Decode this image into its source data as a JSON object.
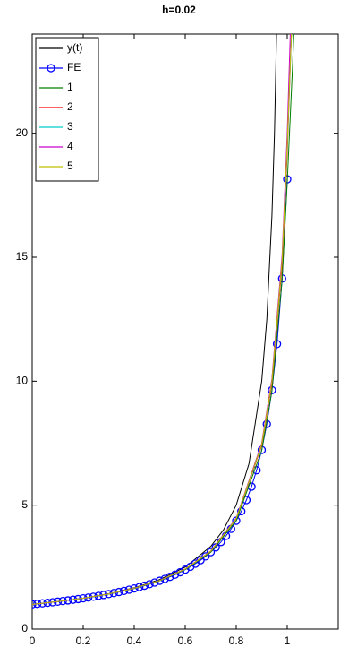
{
  "chart_data": {
    "type": "line",
    "title": "h=0.02",
    "xlim": [
      0,
      1.2
    ],
    "ylim": [
      0,
      24
    ],
    "xticks": [
      0,
      0.2,
      0.4,
      0.6,
      0.8,
      1
    ],
    "yticks": [
      0,
      5,
      10,
      15,
      20
    ],
    "legend": "upper-left",
    "series": [
      {
        "name": "y(t)",
        "color": "#000000",
        "marker": "none",
        "x": [
          0,
          0.1,
          0.2,
          0.3,
          0.4,
          0.5,
          0.6,
          0.7,
          0.75,
          0.8,
          0.85,
          0.9,
          0.92,
          0.94,
          0.95,
          0.96
        ],
        "values": [
          1,
          1.111,
          1.25,
          1.429,
          1.667,
          2,
          2.5,
          3.333,
          4,
          5,
          6.667,
          10,
          12.5,
          16.667,
          20,
          25
        ]
      },
      {
        "name": "FE",
        "color": "#0000ff",
        "marker": "circle",
        "x": [
          0,
          0.02,
          0.04,
          0.06,
          0.08,
          0.1,
          0.12,
          0.14,
          0.16,
          0.18,
          0.2,
          0.22,
          0.24,
          0.26,
          0.28,
          0.3,
          0.32,
          0.34,
          0.36,
          0.38,
          0.4,
          0.42,
          0.44,
          0.46,
          0.48,
          0.5,
          0.52,
          0.54,
          0.56,
          0.58,
          0.6,
          0.62,
          0.64,
          0.66,
          0.68,
          0.7,
          0.72,
          0.74,
          0.76,
          0.78,
          0.8,
          0.82,
          0.84,
          0.86,
          0.88,
          0.9,
          0.92,
          0.94,
          0.96,
          0.98,
          1
        ],
        "values": [
          1,
          1.02,
          1.0408,
          1.0625,
          1.0851,
          1.1086,
          1.1332,
          1.1589,
          1.1858,
          1.2139,
          1.2434,
          1.2743,
          1.3068,
          1.341,
          1.377,
          1.4149,
          1.4549,
          1.4972,
          1.542,
          1.5896,
          1.6401,
          1.6939,
          1.7513,
          1.8126,
          1.8783,
          1.9489,
          2.0249,
          2.1069,
          2.1957,
          2.2921,
          2.3972,
          2.5121,
          2.6383,
          2.7775,
          2.9318,
          3.1037,
          3.2964,
          3.5137,
          3.7606,
          4.0434,
          4.3704,
          4.7524,
          5.2041,
          5.7458,
          6.4061,
          7.2269,
          8.2715,
          9.6399,
          11.498,
          14.142,
          18.142
        ]
      },
      {
        "name": "1",
        "color": "#008000",
        "marker": "none",
        "x": [
          0,
          0.1,
          0.2,
          0.3,
          0.4,
          0.5,
          0.6,
          0.7,
          0.8,
          0.9,
          0.94,
          0.98,
          1,
          1.02,
          1.03
        ],
        "values": [
          1,
          1.11,
          1.245,
          1.415,
          1.64,
          1.95,
          2.4,
          3.1,
          4.37,
          7.2,
          9.6,
          14.1,
          18,
          22.5,
          25
        ]
      },
      {
        "name": "2",
        "color": "#ff0000",
        "marker": "none",
        "x": [
          0,
          0.1,
          0.2,
          0.3,
          0.4,
          0.5,
          0.6,
          0.7,
          0.8,
          0.9,
          0.94,
          0.98,
          1,
          1.02
        ],
        "values": [
          1,
          1.11,
          1.248,
          1.42,
          1.65,
          1.96,
          2.42,
          3.13,
          4.45,
          7.4,
          9.9,
          14.7,
          19.2,
          25
        ]
      },
      {
        "name": "3",
        "color": "#00cccc",
        "marker": "none",
        "x": [
          0,
          0.1,
          0.2,
          0.3,
          0.4,
          0.5,
          0.6,
          0.7,
          0.8,
          0.9,
          0.94,
          0.98,
          1,
          1.02
        ],
        "values": [
          1,
          1.11,
          1.248,
          1.42,
          1.65,
          1.96,
          2.42,
          3.14,
          4.46,
          7.45,
          10,
          14.9,
          19.5,
          25
        ]
      },
      {
        "name": "4",
        "color": "#cc00cc",
        "marker": "none",
        "x": [
          0,
          0.1,
          0.2,
          0.3,
          0.4,
          0.5,
          0.6,
          0.7,
          0.8,
          0.9,
          0.94,
          0.98,
          1,
          1.015
        ],
        "values": [
          1,
          1.11,
          1.249,
          1.421,
          1.652,
          1.962,
          2.43,
          3.15,
          4.48,
          7.5,
          10.1,
          15.1,
          20,
          25
        ]
      },
      {
        "name": "5",
        "color": "#bfbf00",
        "marker": "none",
        "x": [
          0,
          0.1,
          0.2,
          0.3,
          0.4,
          0.5,
          0.6,
          0.7,
          0.8,
          0.9,
          0.94,
          0.98,
          1,
          1.02
        ],
        "values": [
          1,
          1.11,
          1.248,
          1.42,
          1.651,
          1.96,
          2.42,
          3.14,
          4.46,
          7.45,
          10,
          14.9,
          19.6,
          25
        ]
      }
    ]
  }
}
